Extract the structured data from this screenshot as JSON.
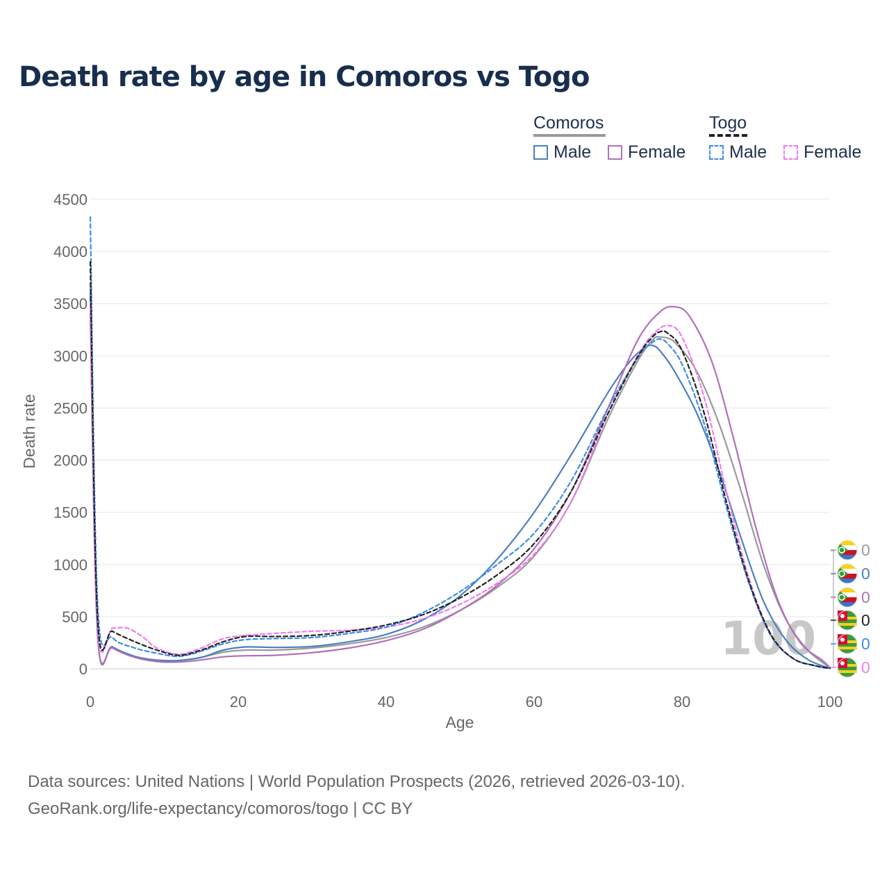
{
  "chart_data": {
    "type": "line",
    "title": "Death rate by age in Comoros vs Togo",
    "xlabel": "Age",
    "ylabel": "Death rate",
    "xlim": [
      0,
      100
    ],
    "ylim": [
      0,
      4500
    ],
    "xticks": [
      0,
      20,
      40,
      60,
      80,
      100
    ],
    "yticks": [
      0,
      500,
      1000,
      1500,
      2000,
      2500,
      3000,
      3500,
      4000,
      4500
    ],
    "watermark": "100",
    "legend": {
      "groups": [
        {
          "title": "Comoros",
          "line_color": "#999999",
          "dashed": false,
          "items": [
            {
              "label": "Male",
              "color": "#4a7fc1"
            },
            {
              "label": "Female",
              "color": "#b070b8"
            }
          ]
        },
        {
          "title": "Togo",
          "line_color": "#222222",
          "dashed": true,
          "items": [
            {
              "label": "Male",
              "color": "#3c8ce6"
            },
            {
              "label": "Female",
              "color": "#f07cf0"
            }
          ]
        }
      ]
    },
    "series": [
      {
        "name": "Comoros Total",
        "color": "#999999",
        "dashed": false,
        "end_value": "0",
        "x": [
          0,
          1,
          3,
          6,
          9,
          12,
          15,
          18,
          21,
          25,
          30,
          35,
          40,
          45,
          50,
          55,
          60,
          65,
          70,
          74,
          76,
          77,
          79,
          82,
          85,
          88,
          91,
          94,
          97,
          100
        ],
        "y": [
          3700,
          320,
          210,
          120,
          85,
          80,
          110,
          160,
          180,
          180,
          200,
          240,
          300,
          400,
          560,
          780,
          1080,
          1600,
          2400,
          2950,
          3150,
          3180,
          3130,
          2850,
          2350,
          1700,
          1000,
          480,
          180,
          10
        ]
      },
      {
        "name": "Comoros Male",
        "color": "#4a7fc1",
        "dashed": false,
        "end_value": "0",
        "x": [
          0,
          1,
          3,
          6,
          9,
          12,
          15,
          18,
          21,
          25,
          30,
          35,
          40,
          45,
          50,
          55,
          60,
          65,
          70,
          73,
          75,
          76,
          77,
          79,
          82,
          85,
          88,
          91,
          94,
          97,
          100
        ],
        "y": [
          3600,
          320,
          210,
          120,
          80,
          80,
          110,
          180,
          210,
          205,
          215,
          260,
          330,
          470,
          700,
          1050,
          1500,
          2050,
          2650,
          2950,
          3080,
          3100,
          3050,
          2850,
          2450,
          1900,
          1250,
          650,
          280,
          90,
          5
        ]
      },
      {
        "name": "Comoros Female",
        "color": "#b070b8",
        "dashed": false,
        "end_value": "0",
        "x": [
          0,
          1,
          3,
          6,
          9,
          12,
          15,
          18,
          21,
          25,
          30,
          35,
          40,
          45,
          50,
          55,
          60,
          65,
          70,
          74,
          77,
          79,
          81,
          84,
          87,
          90,
          93,
          96,
          99,
          100
        ],
        "y": [
          3400,
          310,
          200,
          110,
          70,
          65,
          85,
          115,
          125,
          130,
          155,
          200,
          270,
          380,
          560,
          800,
          1150,
          1700,
          2500,
          3150,
          3420,
          3470,
          3380,
          2950,
          2200,
          1350,
          650,
          250,
          80,
          10
        ]
      },
      {
        "name": "Togo Total",
        "color": "#222222",
        "dashed": true,
        "end_value": "0",
        "x": [
          0,
          1,
          3,
          6,
          9,
          12,
          15,
          18,
          21,
          25,
          30,
          35,
          40,
          45,
          50,
          55,
          60,
          65,
          70,
          74,
          76,
          77,
          78,
          80,
          83,
          86,
          89,
          92,
          95,
          98,
          100
        ],
        "y": [
          3900,
          460,
          360,
          260,
          180,
          130,
          180,
          260,
          310,
          310,
          320,
          360,
          420,
          520,
          680,
          900,
          1200,
          1700,
          2450,
          2990,
          3180,
          3230,
          3220,
          3050,
          2450,
          1600,
          850,
          330,
          100,
          30,
          5
        ]
      },
      {
        "name": "Togo Male",
        "color": "#3c8ce6",
        "dashed": true,
        "end_value": "0",
        "x": [
          0,
          1,
          3,
          6,
          9,
          12,
          15,
          18,
          21,
          25,
          30,
          35,
          40,
          45,
          50,
          55,
          60,
          65,
          70,
          74,
          76,
          77,
          78,
          80,
          83,
          86,
          89,
          92,
          95,
          98,
          100
        ],
        "y": [
          4330,
          600,
          300,
          200,
          150,
          120,
          170,
          240,
          280,
          290,
          300,
          340,
          400,
          540,
          740,
          1000,
          1300,
          1800,
          2500,
          2980,
          3130,
          3160,
          3120,
          2920,
          2350,
          1550,
          830,
          320,
          100,
          30,
          5
        ]
      },
      {
        "name": "Togo Female",
        "color": "#f07cf0",
        "dashed": true,
        "end_value": "0",
        "x": [
          0,
          1,
          3,
          5,
          7,
          9,
          12,
          15,
          18,
          21,
          25,
          30,
          35,
          40,
          45,
          50,
          55,
          60,
          65,
          70,
          74,
          76,
          78,
          80,
          83,
          86,
          89,
          92,
          95,
          98,
          100
        ],
        "y": [
          3500,
          390,
          390,
          390,
          310,
          200,
          140,
          200,
          290,
          320,
          340,
          360,
          370,
          400,
          480,
          620,
          820,
          1100,
          1600,
          2450,
          3000,
          3200,
          3290,
          3180,
          2600,
          1700,
          880,
          330,
          100,
          30,
          5
        ]
      }
    ]
  },
  "footer": {
    "line1": "Data sources: United Nations | World Population Prospects (2026, retrieved 2026-03-10).",
    "line2": "GeoRank.org/life-expectancy/comoros/togo | CC BY"
  }
}
